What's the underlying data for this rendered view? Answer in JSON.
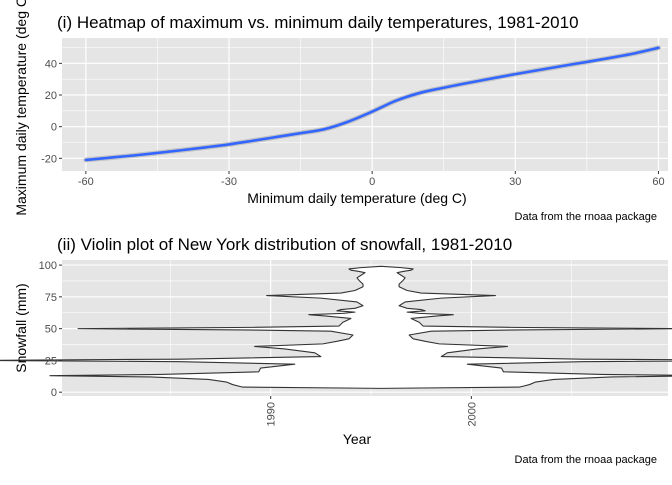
{
  "colors": {
    "panel": "#e5e5e5",
    "grid_major": "#ffffff",
    "line": "#3366ff",
    "band": "#999999",
    "violin_stroke": "#333333",
    "violin_fill": "#ffffff"
  },
  "chart_data": [
    {
      "type": "line",
      "title": "(i) Heatmap of maximum vs. minimum daily temperatures, 1981-2010",
      "xlabel": "Minimum daily temperature (deg C)",
      "ylabel": "Maximum daily temperature (deg C)",
      "caption": "Data from the rnoaa package",
      "xlim": [
        -65,
        62
      ],
      "ylim": [
        -28,
        56
      ],
      "x_ticks": [
        -60,
        -30,
        0,
        30,
        60
      ],
      "y_ticks": [
        -20,
        0,
        20,
        40
      ],
      "grid": true,
      "series": [
        {
          "x": [
            -60,
            -55,
            -50,
            -45,
            -40,
            -35,
            -30,
            -25,
            -20,
            -15,
            -10,
            -5,
            0,
            5,
            10,
            15,
            20,
            25,
            30,
            35,
            40,
            45,
            50,
            55,
            60
          ],
          "y": [
            -21,
            -19.6,
            -18.2,
            -16.6,
            -14.9,
            -13.1,
            -11.2,
            -8.9,
            -6.5,
            -4.1,
            -1.6,
            3.2,
            9.5,
            16.4,
            21.3,
            24.6,
            27.6,
            30.4,
            33.2,
            35.8,
            38.4,
            40.9,
            43.5,
            46.3,
            49.8
          ]
        }
      ]
    },
    {
      "type": "violin",
      "title": "(ii) Violin plot of New York distribution of snowfall, 1981-2010",
      "xlabel": "Year",
      "ylabel": "Snowfall (mm)",
      "caption": "Data from the rnoaa package",
      "xlim": [
        1979.6,
        2009.8
      ],
      "ylim": [
        -3,
        104
      ],
      "x_ticks": [
        1990,
        2000
      ],
      "y_ticks": [
        0,
        25,
        50,
        75,
        100
      ],
      "grid": true,
      "center_x": 1995.5,
      "profile": {
        "y": [
          3,
          4,
          6,
          8,
          10,
          12,
          13,
          14,
          16,
          19,
          22,
          24,
          25,
          26,
          28,
          31,
          34,
          36,
          38,
          40,
          42,
          45,
          48,
          49,
          50,
          51,
          52,
          55,
          58,
          60,
          61,
          62,
          63,
          64,
          65,
          66,
          68,
          71,
          74,
          76,
          78,
          80,
          83,
          85,
          88,
          90,
          92,
          94,
          95,
          96,
          97,
          98,
          99
        ],
        "half_width": [
          0,
          6.9,
          7.4,
          7.7,
          8.6,
          11.5,
          16.5,
          11.0,
          6.1,
          6.0,
          4.3,
          10.0,
          20.4,
          10.0,
          3.0,
          3.3,
          4.8,
          6.3,
          2.9,
          2.2,
          1.6,
          1.4,
          2.5,
          6.9,
          15.1,
          6.5,
          2.1,
          1.9,
          1.5,
          2.8,
          3.6,
          1.9,
          1.3,
          2.2,
          2.0,
          1.3,
          0.9,
          1.2,
          3.0,
          5.7,
          2.0,
          1.3,
          0.9,
          0.9,
          1.1,
          1.2,
          1.0,
          0.8,
          1.1,
          1.5,
          1.6,
          1.0,
          0
        ]
      }
    }
  ]
}
